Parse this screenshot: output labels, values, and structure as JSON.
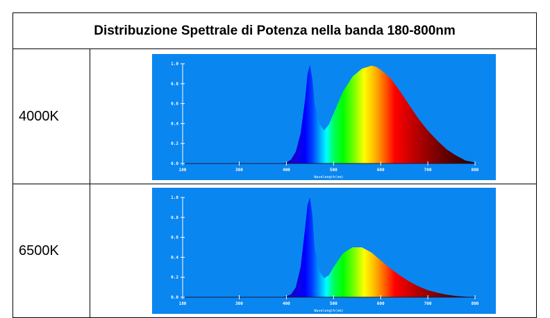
{
  "table": {
    "title": "Distribuzione Spettrale di Potenza nella banda 180-800nm"
  },
  "colors": {
    "panel_background": "#0a86f0",
    "axis": "#ffffff",
    "table_border": "#000000"
  },
  "chart_data": [
    {
      "type": "area",
      "row_label": "4000K",
      "xlabel": "Wavelength(nm)",
      "ylabel": "",
      "xlim": [
        180,
        800
      ],
      "ylim": [
        0,
        1.0
      ],
      "x_ticks": [
        "180",
        "300",
        "400",
        "500",
        "600",
        "700",
        "800"
      ],
      "y_ticks": [
        "0.0",
        "0.2",
        "0.4",
        "0.6",
        "0.8",
        "1.0"
      ],
      "fill": "visible-spectrum gradient",
      "grid": false,
      "series": [
        {
          "x": [
            180,
            300,
            390,
            400,
            410,
            420,
            430,
            440,
            445,
            450,
            455,
            460,
            470,
            480,
            490,
            500,
            520,
            540,
            560,
            580,
            590,
            600,
            620,
            640,
            660,
            680,
            700,
            720,
            740,
            760,
            780,
            800
          ],
          "y": [
            0.0,
            0.0,
            0.0,
            0.01,
            0.04,
            0.12,
            0.3,
            0.65,
            0.9,
            0.99,
            0.85,
            0.6,
            0.4,
            0.33,
            0.39,
            0.5,
            0.72,
            0.87,
            0.95,
            0.98,
            0.97,
            0.94,
            0.86,
            0.73,
            0.59,
            0.45,
            0.33,
            0.23,
            0.14,
            0.08,
            0.03,
            0.01
          ]
        }
      ]
    },
    {
      "type": "area",
      "row_label": "6500K",
      "xlabel": "Wavelength(nm)",
      "ylabel": "",
      "xlim": [
        180,
        800
      ],
      "ylim": [
        0,
        1.0
      ],
      "x_ticks": [
        "180",
        "300",
        "400",
        "500",
        "600",
        "700",
        "800"
      ],
      "y_ticks": [
        "0.0",
        "0.2",
        "0.4",
        "0.6",
        "0.8",
        "1.0"
      ],
      "fill": "visible-spectrum gradient",
      "grid": false,
      "series": [
        {
          "x": [
            180,
            300,
            390,
            400,
            410,
            420,
            430,
            440,
            445,
            450,
            455,
            460,
            470,
            480,
            490,
            500,
            520,
            540,
            560,
            580,
            600,
            620,
            640,
            660,
            680,
            700,
            720,
            740,
            760,
            780,
            800
          ],
          "y": [
            0.0,
            0.0,
            0.0,
            0.01,
            0.03,
            0.1,
            0.3,
            0.7,
            0.93,
            1.0,
            0.83,
            0.5,
            0.26,
            0.19,
            0.22,
            0.3,
            0.44,
            0.5,
            0.5,
            0.45,
            0.37,
            0.29,
            0.22,
            0.16,
            0.11,
            0.07,
            0.045,
            0.025,
            0.012,
            0.005,
            0.002
          ]
        }
      ]
    }
  ]
}
